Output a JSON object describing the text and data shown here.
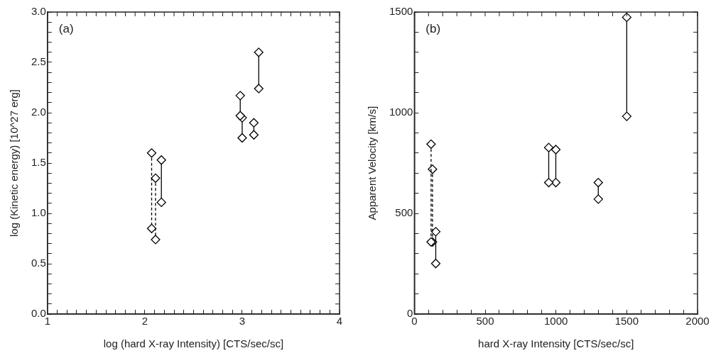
{
  "chart_data": [
    {
      "type": "scatter",
      "xlabel": "log (hard X-ray Intensity) [CTS/sec/sc]",
      "ylabel": "log (Kinetic energy) [10^27 erg]",
      "annotations": [
        "(a)"
      ],
      "legend": false,
      "grid": false,
      "marker": "diamond",
      "xlim": [
        1,
        4
      ],
      "ylim": [
        0,
        3
      ],
      "xticks": [
        1,
        {
          "value": 1.1,
          "label": null
        },
        {
          "value": 1.2,
          "label": null
        },
        {
          "value": 1.3,
          "label": null
        },
        {
          "value": 1.4,
          "label": null
        },
        {
          "value": 1.5,
          "label": null
        },
        {
          "value": 1.6,
          "label": null
        },
        {
          "value": 1.7,
          "label": null
        },
        {
          "value": 1.8,
          "label": null
        },
        {
          "value": 1.9,
          "label": null
        },
        2,
        {
          "value": 2.1,
          "label": null
        },
        {
          "value": 2.2,
          "label": null
        },
        {
          "value": 2.3,
          "label": null
        },
        {
          "value": 2.4,
          "label": null
        },
        {
          "value": 2.5,
          "label": null
        },
        {
          "value": 2.6,
          "label": null
        },
        {
          "value": 2.7,
          "label": null
        },
        {
          "value": 2.8,
          "label": null
        },
        {
          "value": 2.9,
          "label": null
        },
        3,
        {
          "value": 3.1,
          "label": null
        },
        {
          "value": 3.2,
          "label": null
        },
        {
          "value": 3.3,
          "label": null
        },
        {
          "value": 3.4,
          "label": null
        },
        {
          "value": 3.5,
          "label": null
        },
        {
          "value": 3.6,
          "label": null
        },
        {
          "value": 3.7,
          "label": null
        },
        {
          "value": 3.8,
          "label": null
        },
        {
          "value": 3.9,
          "label": null
        },
        4
      ],
      "yticks": [
        {
          "value": 0,
          "label": "0.0"
        },
        {
          "value": 0.1,
          "label": null
        },
        {
          "value": 0.2,
          "label": null
        },
        {
          "value": 0.3,
          "label": null
        },
        {
          "value": 0.4,
          "label": null
        },
        0.5,
        {
          "value": 0.6,
          "label": null
        },
        {
          "value": 0.7,
          "label": null
        },
        {
          "value": 0.8,
          "label": null
        },
        {
          "value": 0.9,
          "label": null
        },
        {
          "value": 1,
          "label": "1.0"
        },
        {
          "value": 1.1,
          "label": null
        },
        {
          "value": 1.2,
          "label": null
        },
        {
          "value": 1.3,
          "label": null
        },
        {
          "value": 1.4,
          "label": null
        },
        1.5,
        {
          "value": 1.6,
          "label": null
        },
        {
          "value": 1.7,
          "label": null
        },
        {
          "value": 1.8,
          "label": null
        },
        {
          "value": 1.9,
          "label": null
        },
        {
          "value": 2,
          "label": "2.0"
        },
        {
          "value": 2.1,
          "label": null
        },
        {
          "value": 2.2,
          "label": null
        },
        {
          "value": 2.3,
          "label": null
        },
        {
          "value": 2.4,
          "label": null
        },
        2.5,
        {
          "value": 2.6,
          "label": null
        },
        {
          "value": 2.7,
          "label": null
        },
        {
          "value": 2.8,
          "label": null
        },
        {
          "value": 2.9,
          "label": null
        },
        {
          "value": 3,
          "label": "3.0"
        }
      ],
      "series": [
        {
          "type": "line",
          "line_style": "dashed",
          "color": "#000000",
          "x": [
            2.07,
            2.07
          ],
          "values": [
            1.6,
            0.85
          ]
        },
        {
          "type": "line",
          "line_style": "dashed",
          "color": "#000000",
          "x": [
            2.11,
            2.11
          ],
          "values": [
            1.35,
            0.74
          ]
        },
        {
          "type": "line",
          "line_style": "solid",
          "color": "#000000",
          "x": [
            2.17,
            2.17
          ],
          "values": [
            1.53,
            1.11
          ]
        },
        {
          "type": "line",
          "line_style": "solid",
          "color": "#000000",
          "x": [
            2.98,
            2.98
          ],
          "values": [
            2.17,
            1.97
          ]
        },
        {
          "type": "line",
          "line_style": "solid",
          "color": "#000000",
          "x": [
            3.0,
            3.0
          ],
          "values": [
            1.95,
            1.75
          ]
        },
        {
          "type": "line",
          "line_style": "solid",
          "color": "#000000",
          "x": [
            3.12,
            3.12
          ],
          "values": [
            1.9,
            1.78
          ]
        },
        {
          "type": "line",
          "line_style": "solid",
          "color": "#000000",
          "x": [
            3.17,
            3.17
          ],
          "values": [
            2.6,
            2.24
          ]
        }
      ]
    },
    {
      "type": "scatter",
      "xlabel": "hard X-ray Intensity [CTS/sec/sc]",
      "ylabel": "Apparent Velocity [km/s]",
      "annotations": [
        "(b)"
      ],
      "legend": false,
      "grid": false,
      "marker": "diamond",
      "xlim": [
        0,
        2000
      ],
      "ylim": [
        0,
        1500
      ],
      "xticks": [
        0,
        {
          "value": 100,
          "label": null
        },
        {
          "value": 200,
          "label": null
        },
        {
          "value": 300,
          "label": null
        },
        {
          "value": 400,
          "label": null
        },
        500,
        {
          "value": 600,
          "label": null
        },
        {
          "value": 700,
          "label": null
        },
        {
          "value": 800,
          "label": null
        },
        {
          "value": 900,
          "label": null
        },
        1000,
        {
          "value": 1100,
          "label": null
        },
        {
          "value": 1200,
          "label": null
        },
        {
          "value": 1300,
          "label": null
        },
        {
          "value": 1400,
          "label": null
        },
        1500,
        {
          "value": 1600,
          "label": null
        },
        {
          "value": 1700,
          "label": null
        },
        {
          "value": 1800,
          "label": null
        },
        {
          "value": 1900,
          "label": null
        },
        2000
      ],
      "yticks": [
        0,
        {
          "value": 100,
          "label": null
        },
        {
          "value": 200,
          "label": null
        },
        {
          "value": 300,
          "label": null
        },
        {
          "value": 400,
          "label": null
        },
        500,
        {
          "value": 600,
          "label": null
        },
        {
          "value": 700,
          "label": null
        },
        {
          "value": 800,
          "label": null
        },
        {
          "value": 900,
          "label": null
        },
        1000,
        {
          "value": 1100,
          "label": null
        },
        {
          "value": 1200,
          "label": null
        },
        {
          "value": 1300,
          "label": null
        },
        {
          "value": 1400,
          "label": null
        },
        1500
      ],
      "series": [
        {
          "type": "line",
          "line_style": "dashed",
          "color": "#000000",
          "x": [
            118,
            118
          ],
          "values": [
            844,
            358
          ]
        },
        {
          "type": "line",
          "line_style": "dashed",
          "color": "#000000",
          "x": [
            128,
            128
          ],
          "values": [
            719,
            358
          ]
        },
        {
          "type": "line",
          "line_style": "solid",
          "color": "#000000",
          "x": [
            151,
            151
          ],
          "values": [
            409,
            251
          ]
        },
        {
          "type": "line",
          "line_style": "solid",
          "color": "#000000",
          "x": [
            949,
            949
          ],
          "values": [
            827,
            653
          ]
        },
        {
          "type": "line",
          "line_style": "solid",
          "color": "#000000",
          "x": [
            999,
            999
          ],
          "values": [
            817,
            653
          ]
        },
        {
          "type": "line",
          "line_style": "solid",
          "color": "#000000",
          "x": [
            1299,
            1299
          ],
          "values": [
            653,
            571
          ]
        },
        {
          "type": "line",
          "line_style": "solid",
          "color": "#000000",
          "x": [
            1500,
            1500
          ],
          "values": [
            1474,
            982
          ]
        }
      ]
    }
  ]
}
